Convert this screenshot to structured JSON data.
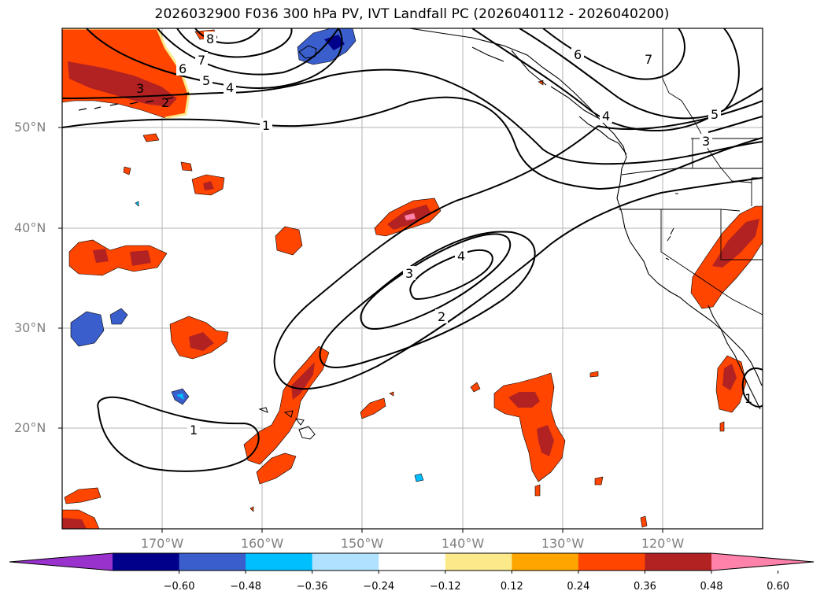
{
  "title": "2026032900 F036 300 hPa PV, IVT Landfall PC (2026040112 - 2026040200)",
  "lat_labels": [
    "50°N",
    "40°N",
    "30°N",
    "20°N"
  ],
  "lon_labels": [
    "170°W",
    "160°W",
    "150°W",
    "140°W",
    "130°W",
    "120°W"
  ],
  "colorbar": {
    "ticks": [
      "−0.60",
      "−0.48",
      "−0.36",
      "−0.24",
      "−0.12",
      "0.12",
      "0.24",
      "0.36",
      "0.48",
      "0.60"
    ],
    "colors": [
      "#9932cc",
      "#00008b",
      "#3a5fcd",
      "#00bfff",
      "#b0e2ff",
      "#ffffff",
      "#fce98a",
      "#ffa500",
      "#ff4500",
      "#b22222",
      "#ff82ab"
    ]
  },
  "contour_labels": [
    "8",
    "7",
    "6",
    "5",
    "4",
    "3",
    "2",
    "1",
    "3",
    "4",
    "2",
    "6",
    "7",
    "4",
    "5",
    "3",
    "1",
    "1"
  ]
}
